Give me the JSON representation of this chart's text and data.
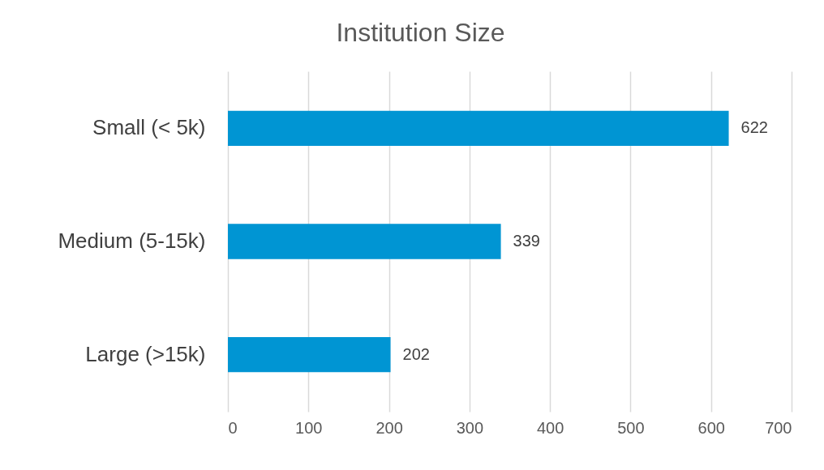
{
  "chart_data": {
    "type": "bar",
    "orientation": "horizontal",
    "title": "Institution Size",
    "categories": [
      "Small (< 5k)",
      "Medium (5-15k)",
      "Large (>15k)"
    ],
    "values": [
      622,
      339,
      202
    ],
    "color": "#0095d3",
    "xlim": [
      0,
      700
    ],
    "xticks": [
      0,
      100,
      200,
      300,
      400,
      500,
      600,
      700
    ],
    "grid": "x",
    "data_labels": true
  }
}
